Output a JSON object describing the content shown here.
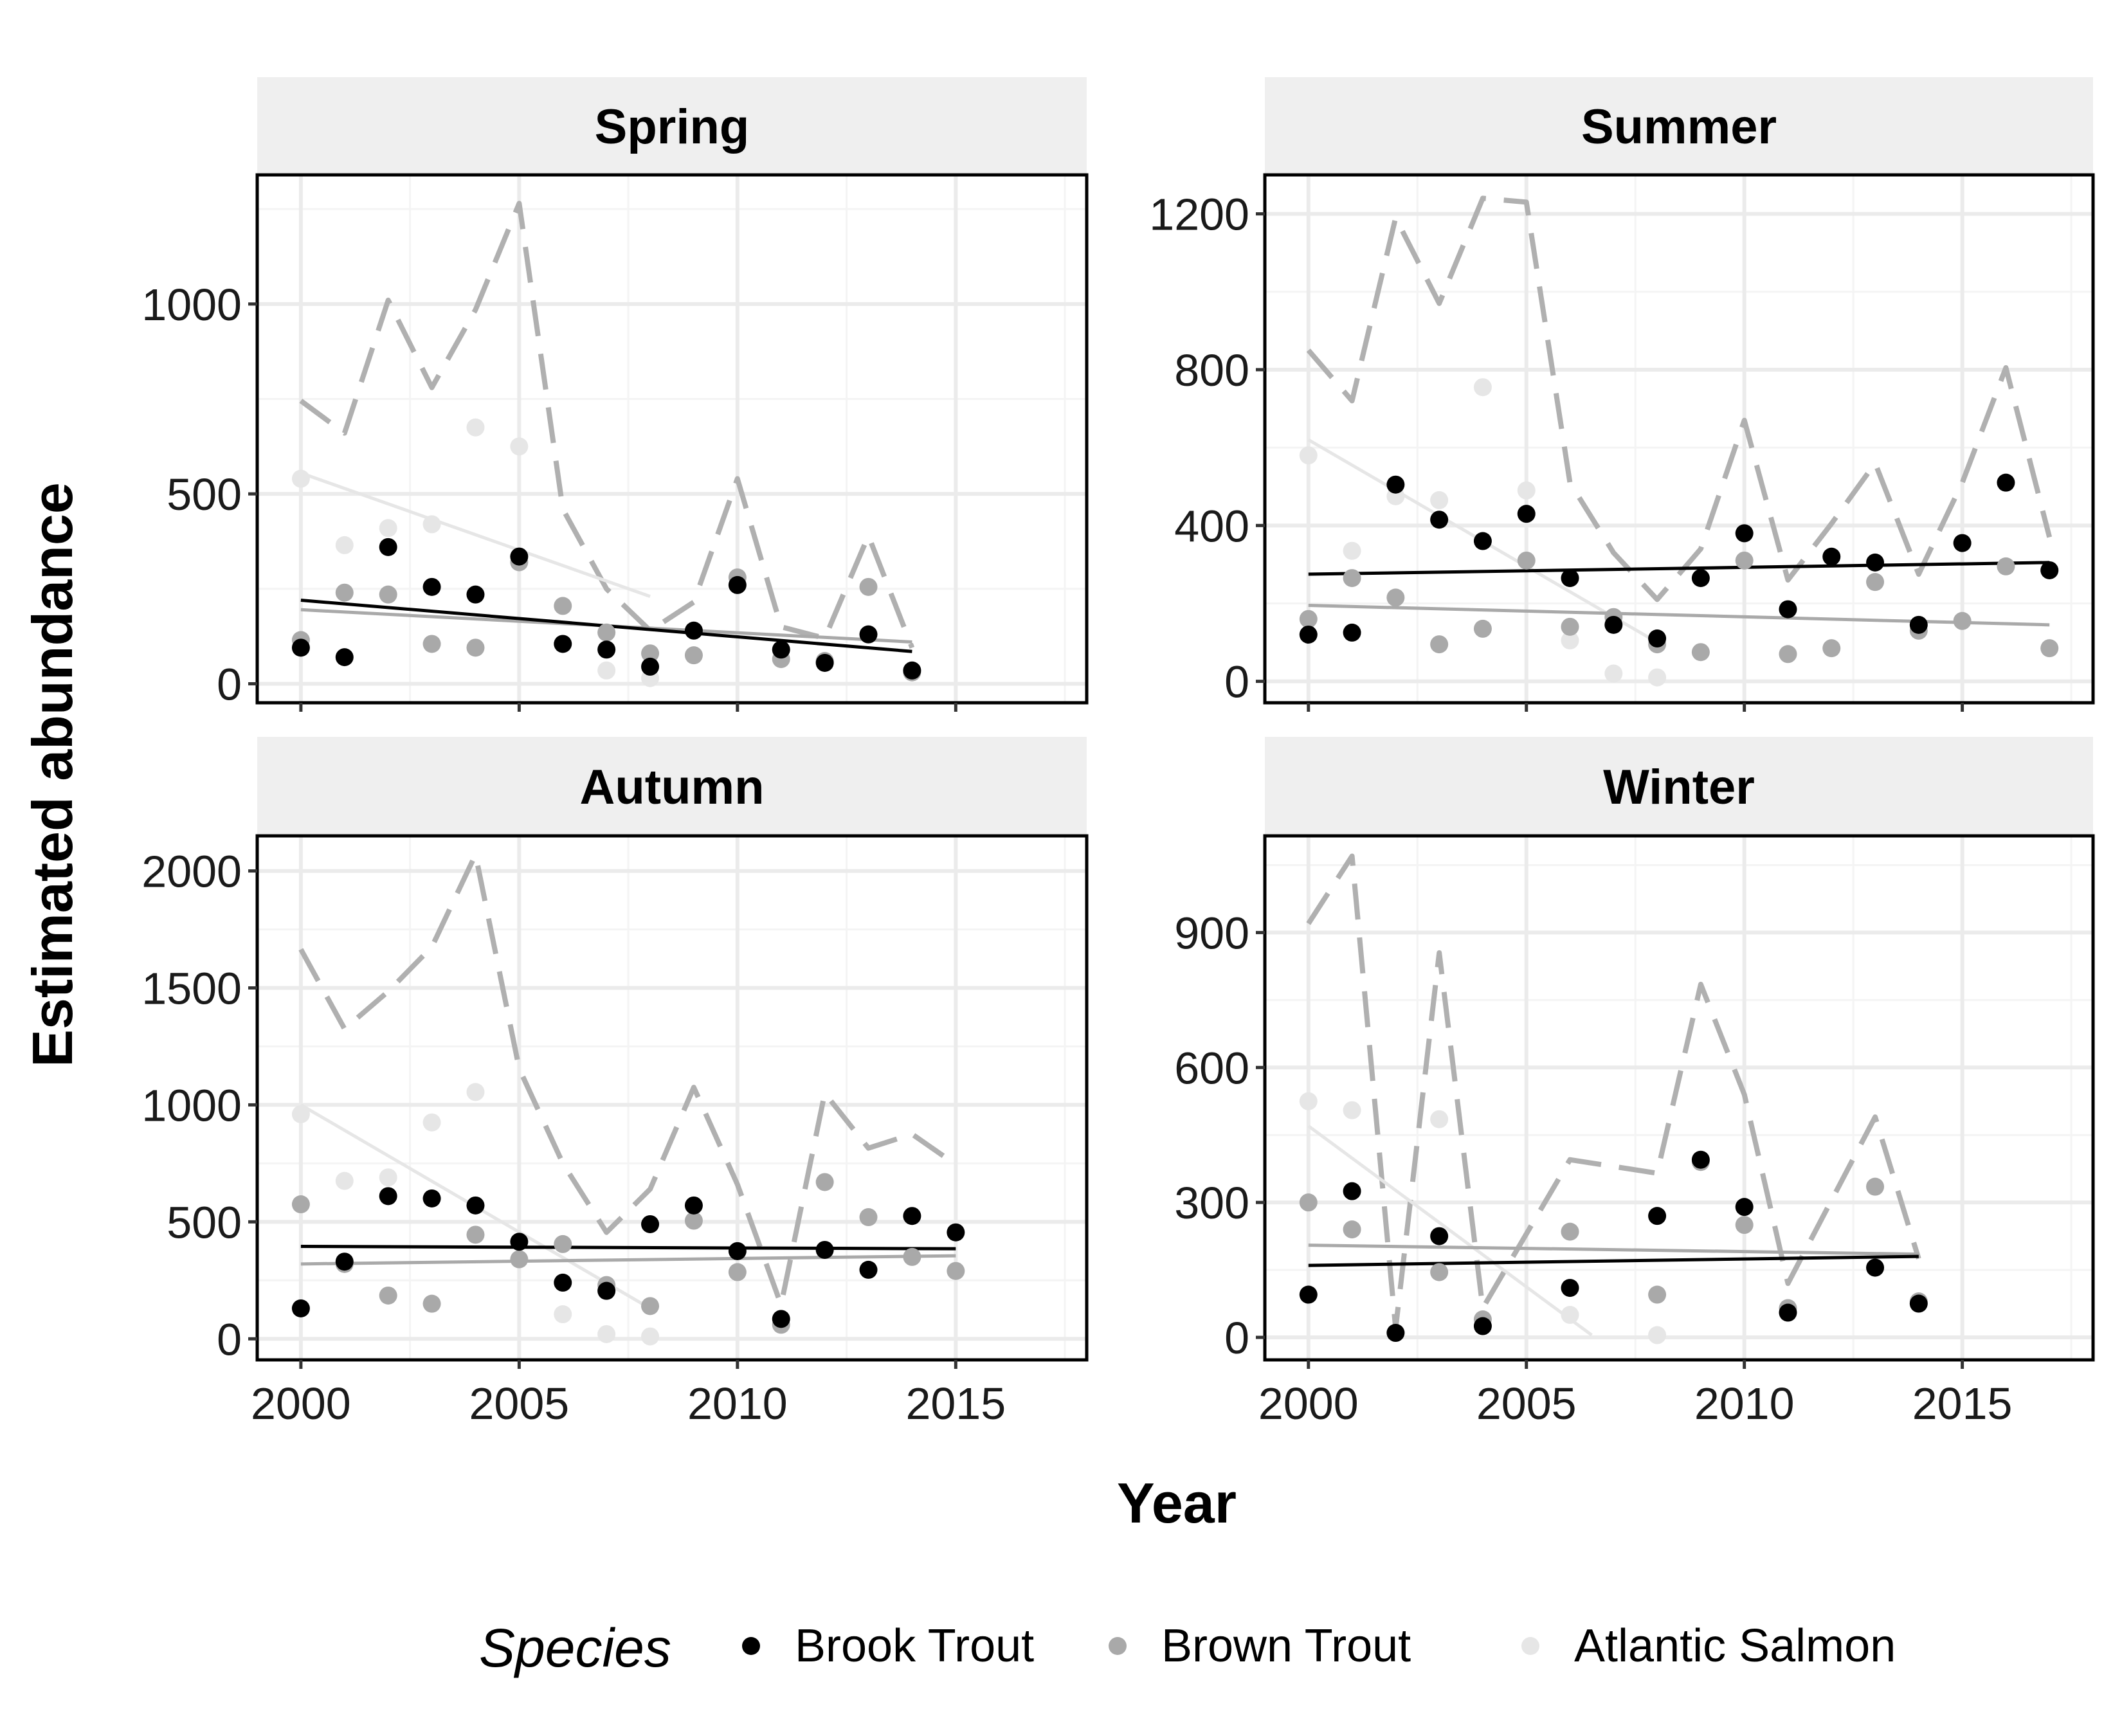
{
  "chart_data": {
    "type": "scatter",
    "xlabel": "Year",
    "ylabel": "Estimated abundance",
    "xlim": [
      1999,
      2018
    ],
    "xticks": [
      2000,
      2005,
      2010,
      2015
    ],
    "grid": true,
    "legend": {
      "title": "Species",
      "position": "bottom",
      "entries": [
        "Brook Trout",
        "Brown Trout",
        "Atlantic Salmon"
      ]
    },
    "colors": {
      "Brook Trout": "#000000",
      "Brown Trout": "#a9a9a9",
      "Atlantic Salmon": "#e6e6e6",
      "total_dashed": "#b0b0b0"
    },
    "panels": [
      {
        "title": "Spring",
        "ylim": [
          -50,
          1340
        ],
        "yticks": [
          0,
          500,
          1000
        ],
        "series": [
          {
            "name": "Brook Trout",
            "points": [
              [
                2000,
                95
              ],
              [
                2001,
                70
              ],
              [
                2002,
                360
              ],
              [
                2003,
                255
              ],
              [
                2004,
                235
              ],
              [
                2005,
                335
              ],
              [
                2006,
                105
              ],
              [
                2007,
                90
              ],
              [
                2008,
                45
              ],
              [
                2009,
                140
              ],
              [
                2010,
                260
              ],
              [
                2011,
                90
              ],
              [
                2012,
                55
              ],
              [
                2013,
                130
              ],
              [
                2014,
                35
              ]
            ],
            "trend": [
              [
                2000,
                220
              ],
              [
                2014,
                85
              ]
            ]
          },
          {
            "name": "Brown Trout",
            "points": [
              [
                2000,
                115
              ],
              [
                2001,
                240
              ],
              [
                2002,
                235
              ],
              [
                2003,
                105
              ],
              [
                2004,
                95
              ],
              [
                2005,
                320
              ],
              [
                2006,
                205
              ],
              [
                2007,
                135
              ],
              [
                2008,
                80
              ],
              [
                2009,
                75
              ],
              [
                2010,
                280
              ],
              [
                2011,
                65
              ],
              [
                2012,
                60
              ],
              [
                2013,
                255
              ],
              [
                2014,
                30
              ]
            ],
            "trend": [
              [
                2000,
                195
              ],
              [
                2014,
                110
              ]
            ]
          },
          {
            "name": "Atlantic Salmon",
            "points": [
              [
                2000,
                540
              ],
              [
                2001,
                365
              ],
              [
                2002,
                410
              ],
              [
                2003,
                420
              ],
              [
                2004,
                675
              ],
              [
                2005,
                625
              ],
              [
                2007,
                35
              ],
              [
                2008,
                15
              ]
            ],
            "trend": [
              [
                2000,
                555
              ],
              [
                2008,
                230
              ]
            ]
          }
        ],
        "total": [
          [
            2000,
            745
          ],
          [
            2001,
            660
          ],
          [
            2002,
            1010
          ],
          [
            2003,
            780
          ],
          [
            2004,
            985
          ],
          [
            2005,
            1265
          ],
          [
            2006,
            460
          ],
          [
            2007,
            250
          ],
          [
            2008,
            140
          ],
          [
            2009,
            215
          ],
          [
            2010,
            540
          ],
          [
            2011,
            150
          ],
          [
            2012,
            120
          ],
          [
            2013,
            390
          ],
          [
            2014,
            95
          ]
        ]
      },
      {
        "title": "Summer",
        "ylim": [
          -55,
          1300
        ],
        "yticks": [
          0,
          400,
          800,
          1200
        ],
        "series": [
          {
            "name": "Brook Trout",
            "points": [
              [
                2000,
                120
              ],
              [
                2001,
                125
              ],
              [
                2002,
                505
              ],
              [
                2003,
                415
              ],
              [
                2004,
                360
              ],
              [
                2005,
                430
              ],
              [
                2006,
                265
              ],
              [
                2007,
                145
              ],
              [
                2008,
                110
              ],
              [
                2009,
                265
              ],
              [
                2010,
                380
              ],
              [
                2011,
                185
              ],
              [
                2012,
                320
              ],
              [
                2013,
                305
              ],
              [
                2014,
                145
              ],
              [
                2015,
                355
              ],
              [
                2016,
                510
              ],
              [
                2017,
                285
              ]
            ],
            "trend": [
              [
                2000,
                275
              ],
              [
                2017,
                305
              ]
            ]
          },
          {
            "name": "Brown Trout",
            "points": [
              [
                2000,
                160
              ],
              [
                2001,
                265
              ],
              [
                2002,
                215
              ],
              [
                2003,
                95
              ],
              [
                2004,
                135
              ],
              [
                2005,
                310
              ],
              [
                2006,
                140
              ],
              [
                2007,
                165
              ],
              [
                2008,
                95
              ],
              [
                2009,
                75
              ],
              [
                2010,
                310
              ],
              [
                2011,
                70
              ],
              [
                2012,
                85
              ],
              [
                2013,
                255
              ],
              [
                2014,
                130
              ],
              [
                2015,
                155
              ],
              [
                2016,
                295
              ],
              [
                2017,
                85
              ]
            ],
            "trend": [
              [
                2000,
                195
              ],
              [
                2017,
                145
              ]
            ]
          },
          {
            "name": "Atlantic Salmon",
            "points": [
              [
                2000,
                580
              ],
              [
                2001,
                335
              ],
              [
                2002,
                475
              ],
              [
                2003,
                465
              ],
              [
                2004,
                755
              ],
              [
                2005,
                490
              ],
              [
                2006,
                105
              ],
              [
                2007,
                20
              ],
              [
                2008,
                10
              ]
            ],
            "trend": [
              [
                2000,
                620
              ],
              [
                2008,
                100
              ]
            ]
          }
        ],
        "total": [
          [
            2000,
            850
          ],
          [
            2001,
            720
          ],
          [
            2002,
            1190
          ],
          [
            2003,
            970
          ],
          [
            2004,
            1240
          ],
          [
            2005,
            1230
          ],
          [
            2006,
            510
          ],
          [
            2007,
            330
          ],
          [
            2008,
            210
          ],
          [
            2009,
            340
          ],
          [
            2010,
            670
          ],
          [
            2011,
            260
          ],
          [
            2012,
            405
          ],
          [
            2013,
            560
          ],
          [
            2014,
            275
          ],
          [
            2015,
            510
          ],
          [
            2016,
            805
          ],
          [
            2017,
            370
          ]
        ]
      },
      {
        "title": "Autumn",
        "ylim": [
          -90,
          2150
        ],
        "yticks": [
          0,
          500,
          1000,
          1500,
          2000
        ],
        "series": [
          {
            "name": "Brook Trout",
            "points": [
              [
                2000,
                130
              ],
              [
                2001,
                330
              ],
              [
                2002,
                610
              ],
              [
                2003,
                600
              ],
              [
                2004,
                570
              ],
              [
                2005,
                415
              ],
              [
                2006,
                240
              ],
              [
                2007,
                205
              ],
              [
                2008,
                490
              ],
              [
                2009,
                570
              ],
              [
                2010,
                375
              ],
              [
                2011,
                85
              ],
              [
                2012,
                380
              ],
              [
                2013,
                295
              ],
              [
                2014,
                525
              ],
              [
                2015,
                455
              ]
            ],
            "trend": [
              [
                2000,
                395
              ],
              [
                2015,
                385
              ]
            ]
          },
          {
            "name": "Brown Trout",
            "points": [
              [
                2000,
                575
              ],
              [
                2001,
                320
              ],
              [
                2002,
                185
              ],
              [
                2003,
                150
              ],
              [
                2004,
                445
              ],
              [
                2005,
                340
              ],
              [
                2006,
                405
              ],
              [
                2007,
                230
              ],
              [
                2008,
                140
              ],
              [
                2009,
                505
              ],
              [
                2010,
                285
              ],
              [
                2011,
                60
              ],
              [
                2012,
                670
              ],
              [
                2013,
                520
              ],
              [
                2014,
                350
              ],
              [
                2015,
                290
              ]
            ],
            "trend": [
              [
                2000,
                320
              ],
              [
                2015,
                355
              ]
            ]
          },
          {
            "name": "Atlantic Salmon",
            "points": [
              [
                2000,
                960
              ],
              [
                2001,
                675
              ],
              [
                2002,
                690
              ],
              [
                2003,
                925
              ],
              [
                2004,
                1055
              ],
              [
                2006,
                105
              ],
              [
                2007,
                20
              ],
              [
                2008,
                10
              ]
            ],
            "trend": [
              [
                2000,
                1000
              ],
              [
                2008,
                130
              ]
            ]
          }
        ],
        "total": [
          [
            2000,
            1665
          ],
          [
            2001,
            1325
          ],
          [
            2002,
            1485
          ],
          [
            2003,
            1675
          ],
          [
            2004,
            2070
          ],
          [
            2005,
            1155
          ],
          [
            2006,
            750
          ],
          [
            2007,
            455
          ],
          [
            2008,
            640
          ],
          [
            2009,
            1075
          ],
          [
            2010,
            660
          ],
          [
            2011,
            145
          ],
          [
            2012,
            1050
          ],
          [
            2013,
            815
          ],
          [
            2014,
            875
          ],
          [
            2015,
            745
          ]
        ]
      },
      {
        "title": "Winter",
        "ylim": [
          -50,
          1115
        ],
        "yticks": [
          0,
          300,
          600,
          900
        ],
        "series": [
          {
            "name": "Brook Trout",
            "points": [
              [
                2000,
                95
              ],
              [
                2001,
                325
              ],
              [
                2002,
                10
              ],
              [
                2003,
                225
              ],
              [
                2004,
                25
              ],
              [
                2006,
                110
              ],
              [
                2008,
                270
              ],
              [
                2009,
                395
              ],
              [
                2010,
                290
              ],
              [
                2011,
                55
              ],
              [
                2013,
                155
              ],
              [
                2014,
                75
              ]
            ],
            "trend": [
              [
                2000,
                160
              ],
              [
                2014,
                180
              ]
            ]
          },
          {
            "name": "Brown Trout",
            "points": [
              [
                2000,
                300
              ],
              [
                2001,
                240
              ],
              [
                2002,
                10
              ],
              [
                2003,
                145
              ],
              [
                2004,
                40
              ],
              [
                2006,
                235
              ],
              [
                2008,
                95
              ],
              [
                2009,
                390
              ],
              [
                2010,
                250
              ],
              [
                2011,
                65
              ],
              [
                2013,
                335
              ],
              [
                2014,
                80
              ]
            ],
            "trend": [
              [
                2000,
                205
              ],
              [
                2014,
                185
              ]
            ]
          },
          {
            "name": "Atlantic Salmon",
            "points": [
              [
                2000,
                525
              ],
              [
                2001,
                505
              ],
              [
                2003,
                485
              ],
              [
                2006,
                50
              ],
              [
                2008,
                5
              ]
            ],
            "trend": [
              [
                2000,
                470
              ],
              [
                2006.5,
                5
              ]
            ]
          }
        ],
        "total": [
          [
            2000,
            920
          ],
          [
            2001,
            1070
          ],
          [
            2002,
            20
          ],
          [
            2003,
            855
          ],
          [
            2004,
            65
          ],
          [
            2006,
            395
          ],
          [
            2008,
            365
          ],
          [
            2009,
            785
          ],
          [
            2010,
            540
          ],
          [
            2011,
            120
          ],
          [
            2013,
            490
          ],
          [
            2014,
            175
          ]
        ]
      }
    ]
  }
}
